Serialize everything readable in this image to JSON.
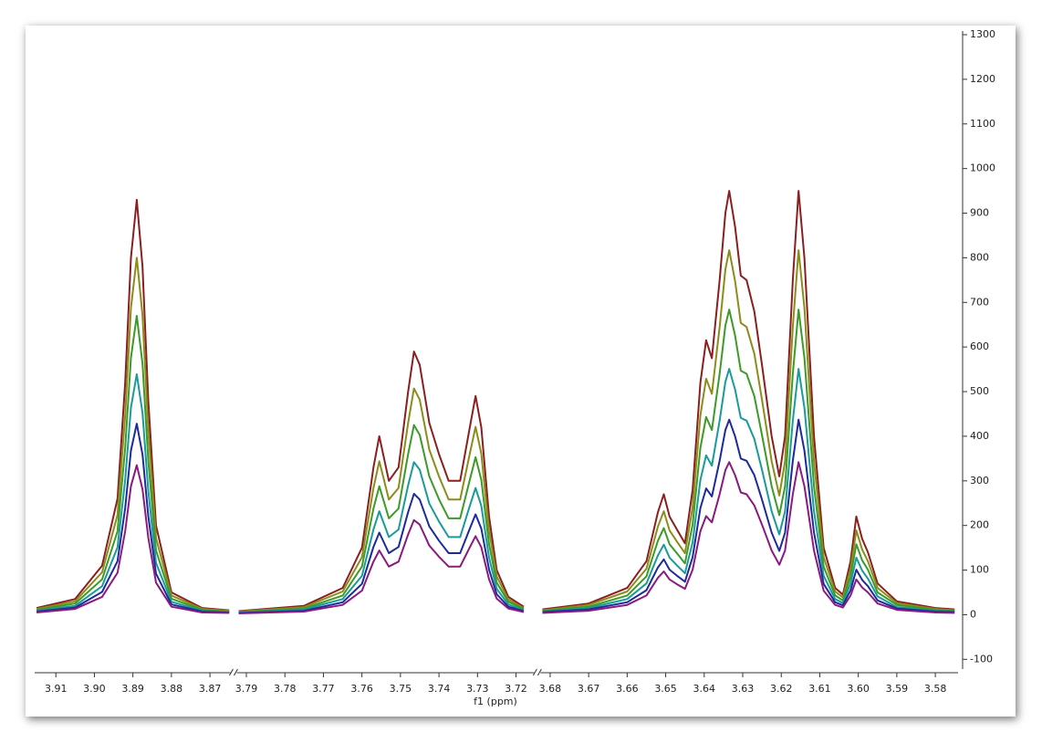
{
  "chart_data": {
    "type": "line",
    "xlabel": "f1 (ppm)",
    "ylim": [
      -130,
      1300
    ],
    "yticks": [
      -100,
      0,
      100,
      200,
      300,
      400,
      500,
      600,
      700,
      800,
      900,
      1000,
      1100,
      1200,
      1300
    ],
    "y_axis_side": "right",
    "x_segments": [
      {
        "xlim": [
          3.9155,
          3.8647
        ],
        "xticks": [
          3.91,
          {
            "value": 3.9,
            "label": "3.90"
          },
          3.89,
          3.88,
          3.87
        ]
      },
      {
        "xlim": [
          3.7925,
          3.7153
        ],
        "xticks": [
          3.79,
          3.78,
          3.77,
          3.76,
          3.75,
          3.74,
          3.73,
          3.72
        ]
      },
      {
        "xlim": [
          3.6825,
          3.5741
        ],
        "xticks": [
          3.68,
          3.67,
          3.66,
          3.65,
          3.64,
          3.63,
          3.62,
          3.61,
          {
            "value": 3.6,
            "label": "3.60"
          },
          3.59,
          3.58
        ]
      }
    ],
    "x": [
      3.915,
      3.905,
      3.898,
      3.894,
      3.892,
      3.8905,
      3.889,
      3.8875,
      3.886,
      3.884,
      3.88,
      3.872,
      3.865,
      3.792,
      3.775,
      3.765,
      3.76,
      3.757,
      3.7555,
      3.753,
      3.7505,
      3.748,
      3.7465,
      3.745,
      3.7425,
      3.74,
      3.7375,
      3.7345,
      3.732,
      3.7305,
      3.729,
      3.727,
      3.725,
      3.722,
      3.718,
      3.682,
      3.67,
      3.66,
      3.655,
      3.652,
      3.6505,
      3.649,
      3.647,
      3.645,
      3.643,
      3.641,
      3.6395,
      3.638,
      3.636,
      3.6345,
      3.6335,
      3.632,
      3.6305,
      3.629,
      3.627,
      3.625,
      3.6225,
      3.6205,
      3.619,
      3.617,
      3.6155,
      3.614,
      3.6115,
      3.609,
      3.606,
      3.604,
      3.602,
      3.6005,
      3.599,
      3.5975,
      3.595,
      3.59,
      3.58,
      3.575
    ],
    "series": [
      {
        "color": "#8b1e1e",
        "values": [
          15,
          35,
          110,
          260,
          520,
          800,
          930,
          780,
          480,
          200,
          50,
          15,
          10,
          8,
          20,
          60,
          150,
          330,
          400,
          300,
          330,
          500,
          590,
          560,
          430,
          360,
          300,
          300,
          420,
          490,
          420,
          220,
          100,
          40,
          18,
          12,
          25,
          60,
          120,
          230,
          270,
          220,
          190,
          160,
          280,
          520,
          615,
          575,
          750,
          900,
          950,
          870,
          760,
          750,
          680,
          560,
          400,
          310,
          400,
          750,
          950,
          800,
          400,
          150,
          60,
          45,
          120,
          220,
          170,
          140,
          70,
          30,
          15,
          12
        ]
      },
      {
        "color": "#8c8c1a",
        "values": [
          13,
          30,
          95,
          224,
          447,
          688,
          800,
          671,
          413,
          172,
          43,
          13,
          9,
          7,
          17,
          52,
          129,
          284,
          344,
          258,
          284,
          430,
          507,
          482,
          370,
          310,
          258,
          258,
          361,
          421,
          361,
          189,
          86,
          34,
          15,
          10,
          22,
          52,
          103,
          198,
          232,
          189,
          163,
          138,
          241,
          447,
          529,
          495,
          645,
          774,
          817,
          748,
          654,
          645,
          585,
          482,
          344,
          267,
          344,
          645,
          817,
          688,
          344,
          129,
          52,
          39,
          103,
          189,
          146,
          120,
          60,
          26,
          13,
          10
        ]
      },
      {
        "color": "#3c9a28",
        "values": [
          11,
          25,
          79,
          187,
          374,
          576,
          670,
          562,
          346,
          144,
          36,
          11,
          7,
          6,
          14,
          43,
          108,
          238,
          288,
          216,
          238,
          360,
          425,
          403,
          310,
          259,
          216,
          216,
          302,
          353,
          302,
          158,
          72,
          29,
          13,
          9,
          18,
          43,
          86,
          166,
          194,
          158,
          137,
          115,
          202,
          374,
          443,
          414,
          540,
          648,
          684,
          626,
          547,
          540,
          490,
          403,
          288,
          223,
          288,
          540,
          684,
          576,
          288,
          108,
          43,
          32,
          86,
          158,
          122,
          101,
          50,
          22,
          11,
          9
        ]
      },
      {
        "color": "#1a9a9a",
        "values": [
          9,
          20,
          64,
          151,
          302,
          464,
          539,
          452,
          278,
          116,
          29,
          9,
          6,
          5,
          12,
          35,
          87,
          191,
          232,
          174,
          191,
          290,
          342,
          325,
          249,
          209,
          174,
          174,
          244,
          284,
          244,
          128,
          58,
          23,
          10,
          7,
          15,
          35,
          70,
          133,
          157,
          128,
          110,
          93,
          162,
          302,
          357,
          334,
          435,
          522,
          551,
          505,
          441,
          435,
          394,
          325,
          232,
          180,
          232,
          435,
          551,
          464,
          232,
          87,
          35,
          26,
          70,
          128,
          99,
          81,
          41,
          17,
          9,
          7
        ]
      },
      {
        "color": "#1c2a9c",
        "values": [
          7,
          16,
          51,
          120,
          239,
          368,
          428,
          359,
          221,
          92,
          23,
          7,
          5,
          4,
          9,
          28,
          69,
          152,
          184,
          138,
          152,
          230,
          271,
          258,
          198,
          166,
          138,
          138,
          193,
          225,
          193,
          101,
          46,
          18,
          8,
          6,
          12,
          28,
          55,
          106,
          124,
          101,
          87,
          74,
          129,
          239,
          283,
          265,
          345,
          414,
          437,
          400,
          350,
          345,
          313,
          258,
          184,
          143,
          184,
          345,
          437,
          368,
          184,
          69,
          28,
          21,
          55,
          101,
          78,
          64,
          32,
          14,
          7,
          6
        ]
      },
      {
        "color": "#8a1a7e",
        "values": [
          5,
          13,
          40,
          94,
          187,
          288,
          335,
          281,
          173,
          72,
          18,
          5,
          4,
          3,
          7,
          22,
          54,
          119,
          144,
          108,
          119,
          180,
          212,
          202,
          155,
          130,
          108,
          108,
          151,
          176,
          151,
          79,
          36,
          14,
          6,
          4,
          9,
          22,
          43,
          83,
          97,
          79,
          68,
          58,
          101,
          187,
          221,
          207,
          270,
          324,
          342,
          313,
          274,
          270,
          245,
          202,
          144,
          112,
          144,
          270,
          342,
          288,
          144,
          54,
          22,
          16,
          43,
          79,
          61,
          50,
          25,
          11,
          5,
          4
        ]
      }
    ]
  }
}
